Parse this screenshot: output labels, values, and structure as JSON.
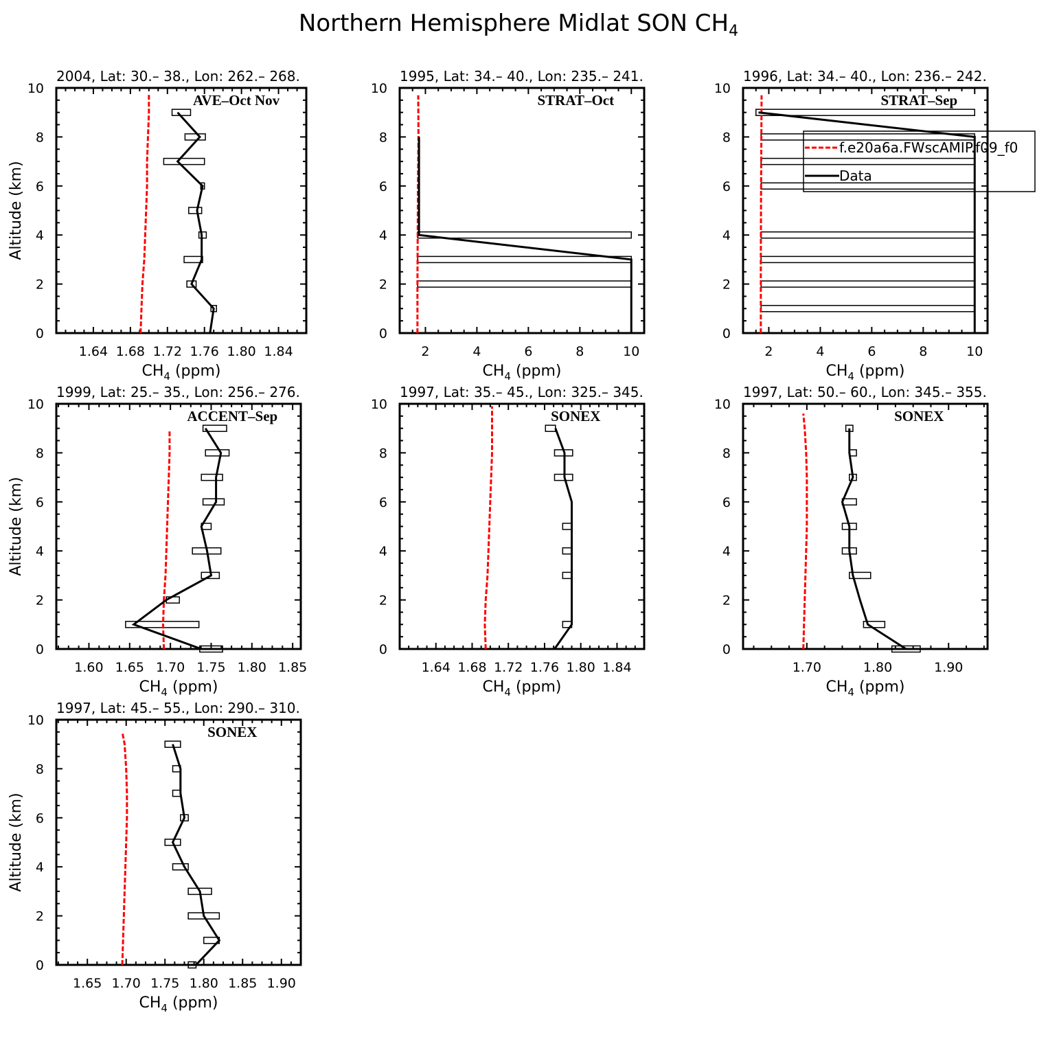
{
  "title": {
    "main": "Northern Hemisphere Midlat SON CH",
    "sub": "4"
  },
  "axis_labels": {
    "x_main": "CH",
    "x_sub": "4",
    "x_unit": " (ppm)",
    "y": "Altitude (km)"
  },
  "legend": {
    "model": "f.e20a6a.FWscAMIP.f09_f0",
    "data": "Data"
  },
  "colors": {
    "model": "#ff0000",
    "data": "#000000"
  },
  "chart_data": [
    {
      "type": "line",
      "header": "2004, Lat: 30.– 38., Lon: 262.– 268.",
      "campaign": "AVE–Oct Nov",
      "xlim": [
        1.6,
        1.87
      ],
      "ylim": [
        0,
        10
      ],
      "xticks": [
        1.64,
        1.68,
        1.72,
        1.76,
        1.8,
        1.84
      ],
      "xtick_labels": [
        "1.64",
        "1.68",
        "1.72",
        "1.76",
        "1.80",
        "1.84"
      ],
      "yticks": [
        0,
        2,
        4,
        6,
        8,
        10
      ],
      "data_line": [
        [
          1.766,
          0
        ],
        [
          1.77,
          1
        ],
        [
          1.746,
          2
        ],
        [
          1.757,
          3
        ],
        [
          1.757,
          4
        ],
        [
          1.752,
          5
        ],
        [
          1.758,
          6
        ],
        [
          1.731,
          7
        ],
        [
          1.755,
          8
        ],
        [
          1.731,
          9
        ]
      ],
      "boxes": [
        [
          1.767,
          1.773,
          1
        ],
        [
          1.741,
          1.751,
          2
        ],
        [
          1.738,
          1.758,
          3
        ],
        [
          1.754,
          1.762,
          4
        ],
        [
          1.743,
          1.757,
          5
        ],
        [
          1.756,
          1.76,
          6
        ],
        [
          1.716,
          1.76,
          7
        ],
        [
          1.739,
          1.761,
          8
        ],
        [
          1.725,
          1.745,
          9
        ]
      ],
      "model_line": [
        [
          1.691,
          0
        ],
        [
          1.692,
          1
        ],
        [
          1.693,
          2
        ],
        [
          1.695,
          3
        ],
        [
          1.696,
          4
        ],
        [
          1.697,
          5
        ],
        [
          1.698,
          6
        ],
        [
          1.698,
          7
        ],
        [
          1.699,
          8
        ],
        [
          1.7,
          9
        ],
        [
          1.7,
          9.8
        ]
      ]
    },
    {
      "type": "line",
      "header": "1995, Lat: 34.– 40., Lon: 235.– 241.",
      "campaign": "STRAT–Oct",
      "xlim": [
        1.0,
        10.5
      ],
      "ylim": [
        0,
        10
      ],
      "xticks": [
        2,
        4,
        6,
        8,
        10
      ],
      "xtick_labels": [
        "2",
        "4",
        "6",
        "8",
        "10"
      ],
      "yticks": [
        0,
        2,
        4,
        6,
        8,
        10
      ],
      "data_line": [
        [
          10,
          0
        ],
        [
          10,
          1
        ],
        [
          10,
          2
        ],
        [
          10,
          3
        ],
        [
          1.75,
          4
        ],
        [
          1.75,
          5
        ],
        [
          1.75,
          6
        ],
        [
          1.75,
          7
        ],
        [
          1.75,
          8
        ]
      ],
      "boxes": [
        [
          1.7,
          10,
          2
        ],
        [
          1.7,
          10,
          3
        ],
        [
          1.7,
          10,
          4
        ]
      ],
      "model_line": [
        [
          1.69,
          0
        ],
        [
          1.69,
          2
        ],
        [
          1.7,
          4
        ],
        [
          1.71,
          6
        ],
        [
          1.73,
          8
        ],
        [
          1.72,
          9.7
        ]
      ]
    },
    {
      "type": "line",
      "header": "1996, Lat: 34.– 40., Lon: 236.– 242.",
      "campaign": "STRAT–Sep",
      "xlim": [
        1.0,
        10.5
      ],
      "ylim": [
        0,
        10
      ],
      "xticks": [
        2,
        4,
        6,
        8,
        10
      ],
      "xtick_labels": [
        "2",
        "4",
        "6",
        "8",
        "10"
      ],
      "yticks": [
        0,
        2,
        4,
        6,
        8,
        10
      ],
      "data_line": [
        [
          10,
          0
        ],
        [
          10,
          1
        ],
        [
          10,
          2
        ],
        [
          10,
          3
        ],
        [
          10,
          4
        ],
        [
          10,
          5
        ],
        [
          10,
          6
        ],
        [
          10,
          7
        ],
        [
          10,
          8
        ],
        [
          1.6,
          9
        ]
      ],
      "boxes": [
        [
          1.7,
          10,
          1
        ],
        [
          1.7,
          10,
          2
        ],
        [
          1.7,
          10,
          3
        ],
        [
          1.7,
          10,
          4
        ],
        [
          1.7,
          10,
          6
        ],
        [
          1.7,
          10,
          7
        ],
        [
          1.7,
          10,
          8
        ],
        [
          1.5,
          10,
          9
        ]
      ],
      "model_line": [
        [
          1.69,
          0
        ],
        [
          1.69,
          3
        ],
        [
          1.7,
          6
        ],
        [
          1.72,
          9.7
        ]
      ],
      "legend": true
    },
    {
      "type": "line",
      "header": "1999, Lat: 25.– 35., Lon: 256.– 276.",
      "campaign": "ACCENT–Sep",
      "xlim": [
        1.56,
        1.86
      ],
      "ylim": [
        0,
        10
      ],
      "xticks": [
        1.6,
        1.65,
        1.7,
        1.75,
        1.8,
        1.85
      ],
      "xtick_labels": [
        "1.60",
        "1.65",
        "1.70",
        "1.75",
        "1.80",
        "1.85"
      ],
      "yticks": [
        0,
        2,
        4,
        6,
        8,
        10
      ],
      "data_line": [
        [
          1.738,
          0
        ],
        [
          1.655,
          1
        ],
        [
          1.695,
          2
        ],
        [
          1.75,
          3
        ],
        [
          1.745,
          4
        ],
        [
          1.738,
          5
        ],
        [
          1.756,
          6
        ],
        [
          1.756,
          7
        ],
        [
          1.762,
          8
        ],
        [
          1.743,
          9
        ]
      ],
      "boxes": [
        [
          1.736,
          1.764,
          0
        ],
        [
          1.645,
          1.735,
          1
        ],
        [
          1.695,
          1.711,
          2
        ],
        [
          1.738,
          1.76,
          3
        ],
        [
          1.727,
          1.762,
          4
        ],
        [
          1.738,
          1.75,
          5
        ],
        [
          1.74,
          1.766,
          6
        ],
        [
          1.738,
          1.764,
          7
        ],
        [
          1.743,
          1.772,
          8
        ],
        [
          1.74,
          1.769,
          9
        ]
      ],
      "model_line": [
        [
          1.692,
          0
        ],
        [
          1.691,
          1
        ],
        [
          1.692,
          2
        ],
        [
          1.694,
          3
        ],
        [
          1.695,
          4
        ],
        [
          1.696,
          5
        ],
        [
          1.697,
          6
        ],
        [
          1.698,
          7
        ],
        [
          1.699,
          8
        ],
        [
          1.699,
          8.9
        ]
      ]
    },
    {
      "type": "line",
      "header": "1997, Lat: 35.– 45., Lon: 325.– 345.",
      "campaign": "SONEX",
      "xlim": [
        1.6,
        1.87
      ],
      "ylim": [
        0,
        10
      ],
      "xticks": [
        1.64,
        1.68,
        1.72,
        1.76,
        1.8,
        1.84
      ],
      "xtick_labels": [
        "1.64",
        "1.68",
        "1.72",
        "1.76",
        "1.80",
        "1.84"
      ],
      "yticks": [
        0,
        2,
        4,
        6,
        8,
        10
      ],
      "data_line": [
        [
          1.771,
          0
        ],
        [
          1.79,
          1
        ],
        [
          1.79,
          2
        ],
        [
          1.79,
          3
        ],
        [
          1.79,
          4
        ],
        [
          1.79,
          5
        ],
        [
          1.79,
          6
        ],
        [
          1.782,
          7
        ],
        [
          1.782,
          8
        ],
        [
          1.772,
          9
        ]
      ],
      "boxes": [
        [
          1.78,
          1.79,
          1
        ],
        [
          1.78,
          1.79,
          3
        ],
        [
          1.78,
          1.79,
          4
        ],
        [
          1.78,
          1.79,
          5
        ],
        [
          1.771,
          1.791,
          7
        ],
        [
          1.771,
          1.791,
          8
        ],
        [
          1.761,
          1.772,
          9
        ]
      ],
      "model_line": [
        [
          1.695,
          0
        ],
        [
          1.694,
          1
        ],
        [
          1.695,
          2
        ],
        [
          1.697,
          3
        ],
        [
          1.698,
          4
        ],
        [
          1.699,
          5
        ],
        [
          1.7,
          6
        ],
        [
          1.701,
          7
        ],
        [
          1.702,
          8
        ],
        [
          1.702,
          9.9
        ]
      ]
    },
    {
      "type": "line",
      "header": "1997, Lat: 50.– 60., Lon: 345.– 355.",
      "campaign": "SONEX",
      "xlim": [
        1.61,
        1.955
      ],
      "ylim": [
        0,
        10
      ],
      "xticks": [
        1.7,
        1.8,
        1.9
      ],
      "xtick_labels": [
        "1.70",
        "1.80",
        "1.90"
      ],
      "yticks": [
        0,
        2,
        4,
        6,
        8,
        10
      ],
      "data_line": [
        [
          1.84,
          0
        ],
        [
          1.786,
          1
        ],
        [
          1.775,
          2
        ],
        [
          1.765,
          3
        ],
        [
          1.76,
          4
        ],
        [
          1.76,
          5
        ],
        [
          1.75,
          6
        ],
        [
          1.765,
          7
        ],
        [
          1.76,
          8
        ],
        [
          1.76,
          9
        ]
      ],
      "boxes": [
        [
          1.82,
          1.86,
          0
        ],
        [
          1.78,
          1.81,
          1
        ],
        [
          1.76,
          1.79,
          3
        ],
        [
          1.75,
          1.77,
          4
        ],
        [
          1.75,
          1.77,
          5
        ],
        [
          1.75,
          1.77,
          6
        ],
        [
          1.76,
          1.77,
          7
        ],
        [
          1.76,
          1.77,
          8
        ],
        [
          1.755,
          1.765,
          9
        ]
      ],
      "model_line": [
        [
          1.695,
          0
        ],
        [
          1.696,
          1
        ],
        [
          1.697,
          2
        ],
        [
          1.698,
          3
        ],
        [
          1.699,
          4
        ],
        [
          1.7,
          5
        ],
        [
          1.7,
          6
        ],
        [
          1.7,
          7
        ],
        [
          1.699,
          8
        ],
        [
          1.697,
          9
        ],
        [
          1.695,
          9.6
        ]
      ]
    },
    {
      "type": "line",
      "header": "1997, Lat: 45.– 55., Lon: 290.– 310.",
      "campaign": "SONEX",
      "xlim": [
        1.61,
        1.925
      ],
      "ylim": [
        0,
        10
      ],
      "xticks": [
        1.65,
        1.7,
        1.75,
        1.8,
        1.85,
        1.9
      ],
      "xtick_labels": [
        "1.65",
        "1.70",
        "1.75",
        "1.80",
        "1.85",
        "1.90"
      ],
      "yticks": [
        0,
        2,
        4,
        6,
        8,
        10
      ],
      "data_line": [
        [
          1.79,
          0
        ],
        [
          1.82,
          1
        ],
        [
          1.8,
          2
        ],
        [
          1.795,
          3
        ],
        [
          1.775,
          4
        ],
        [
          1.76,
          5
        ],
        [
          1.775,
          6
        ],
        [
          1.77,
          7
        ],
        [
          1.77,
          8
        ],
        [
          1.76,
          9
        ]
      ],
      "boxes": [
        [
          1.78,
          1.79,
          0
        ],
        [
          1.8,
          1.82,
          1
        ],
        [
          1.78,
          1.82,
          2
        ],
        [
          1.78,
          1.81,
          3
        ],
        [
          1.76,
          1.78,
          4
        ],
        [
          1.75,
          1.77,
          5
        ],
        [
          1.77,
          1.78,
          6
        ],
        [
          1.76,
          1.77,
          7
        ],
        [
          1.76,
          1.77,
          8
        ],
        [
          1.75,
          1.77,
          9
        ]
      ],
      "model_line": [
        [
          1.695,
          0
        ],
        [
          1.696,
          1
        ],
        [
          1.697,
          2
        ],
        [
          1.698,
          3
        ],
        [
          1.699,
          4
        ],
        [
          1.7,
          5
        ],
        [
          1.701,
          6
        ],
        [
          1.701,
          7
        ],
        [
          1.7,
          8
        ],
        [
          1.698,
          9
        ],
        [
          1.695,
          9.5
        ]
      ]
    }
  ]
}
